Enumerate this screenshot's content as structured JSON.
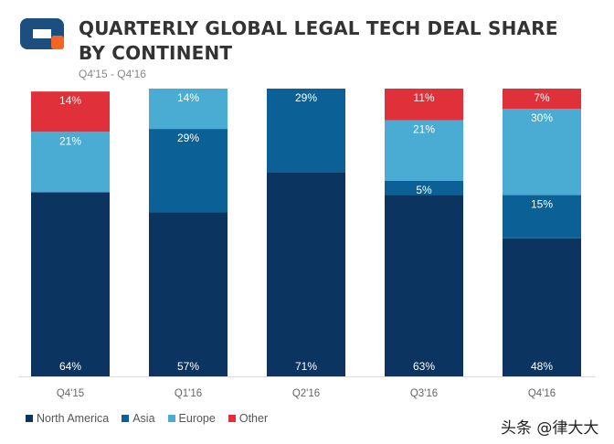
{
  "header": {
    "title": "QUARTERLY GLOBAL LEGAL TECH DEAL SHARE BY CONTINENT",
    "subtitle": "Q4'15 - Q4'16"
  },
  "colors": {
    "north_america": "#0b3461",
    "asia": "#0b6196",
    "europe": "#4aabd3",
    "other": "#e0303a",
    "gridline": "#dddddd",
    "logo_blue": "#1c4e80",
    "logo_orange": "#f26522"
  },
  "icons": {
    "logo": "cb-insights-logo"
  },
  "chart_data": {
    "type": "bar",
    "stacked": true,
    "title": "QUARTERLY GLOBAL LEGAL TECH DEAL SHARE BY CONTINENT",
    "subtitle": "Q4'15 - Q4'16",
    "categories": [
      "Q4'15",
      "Q1'16",
      "Q2'16",
      "Q3'16",
      "Q4'16"
    ],
    "series": [
      {
        "name": "North America",
        "values": [
          64,
          57,
          71,
          63,
          48
        ],
        "labels": [
          "64%",
          "57%",
          "71%",
          "63%",
          "48%"
        ]
      },
      {
        "name": "Asia",
        "values": [
          0,
          29,
          29,
          5,
          15
        ],
        "labels": [
          "",
          "29%",
          "29%",
          "5%",
          "15%"
        ]
      },
      {
        "name": "Europe",
        "values": [
          21,
          14,
          0,
          21,
          30
        ],
        "labels": [
          "21%",
          "14%",
          "",
          "21%",
          "30%"
        ]
      },
      {
        "name": "Other",
        "values": [
          14,
          0,
          0,
          11,
          7
        ],
        "labels": [
          "14%",
          "",
          "",
          "11%",
          "7%"
        ]
      }
    ],
    "ylim": [
      0,
      100
    ],
    "legend_position": "bottom-left"
  },
  "legend": {
    "items": [
      {
        "label": "North America"
      },
      {
        "label": "Asia"
      },
      {
        "label": "Europe"
      },
      {
        "label": "Other"
      }
    ]
  },
  "watermark": {
    "text": "头条 @律大大"
  }
}
